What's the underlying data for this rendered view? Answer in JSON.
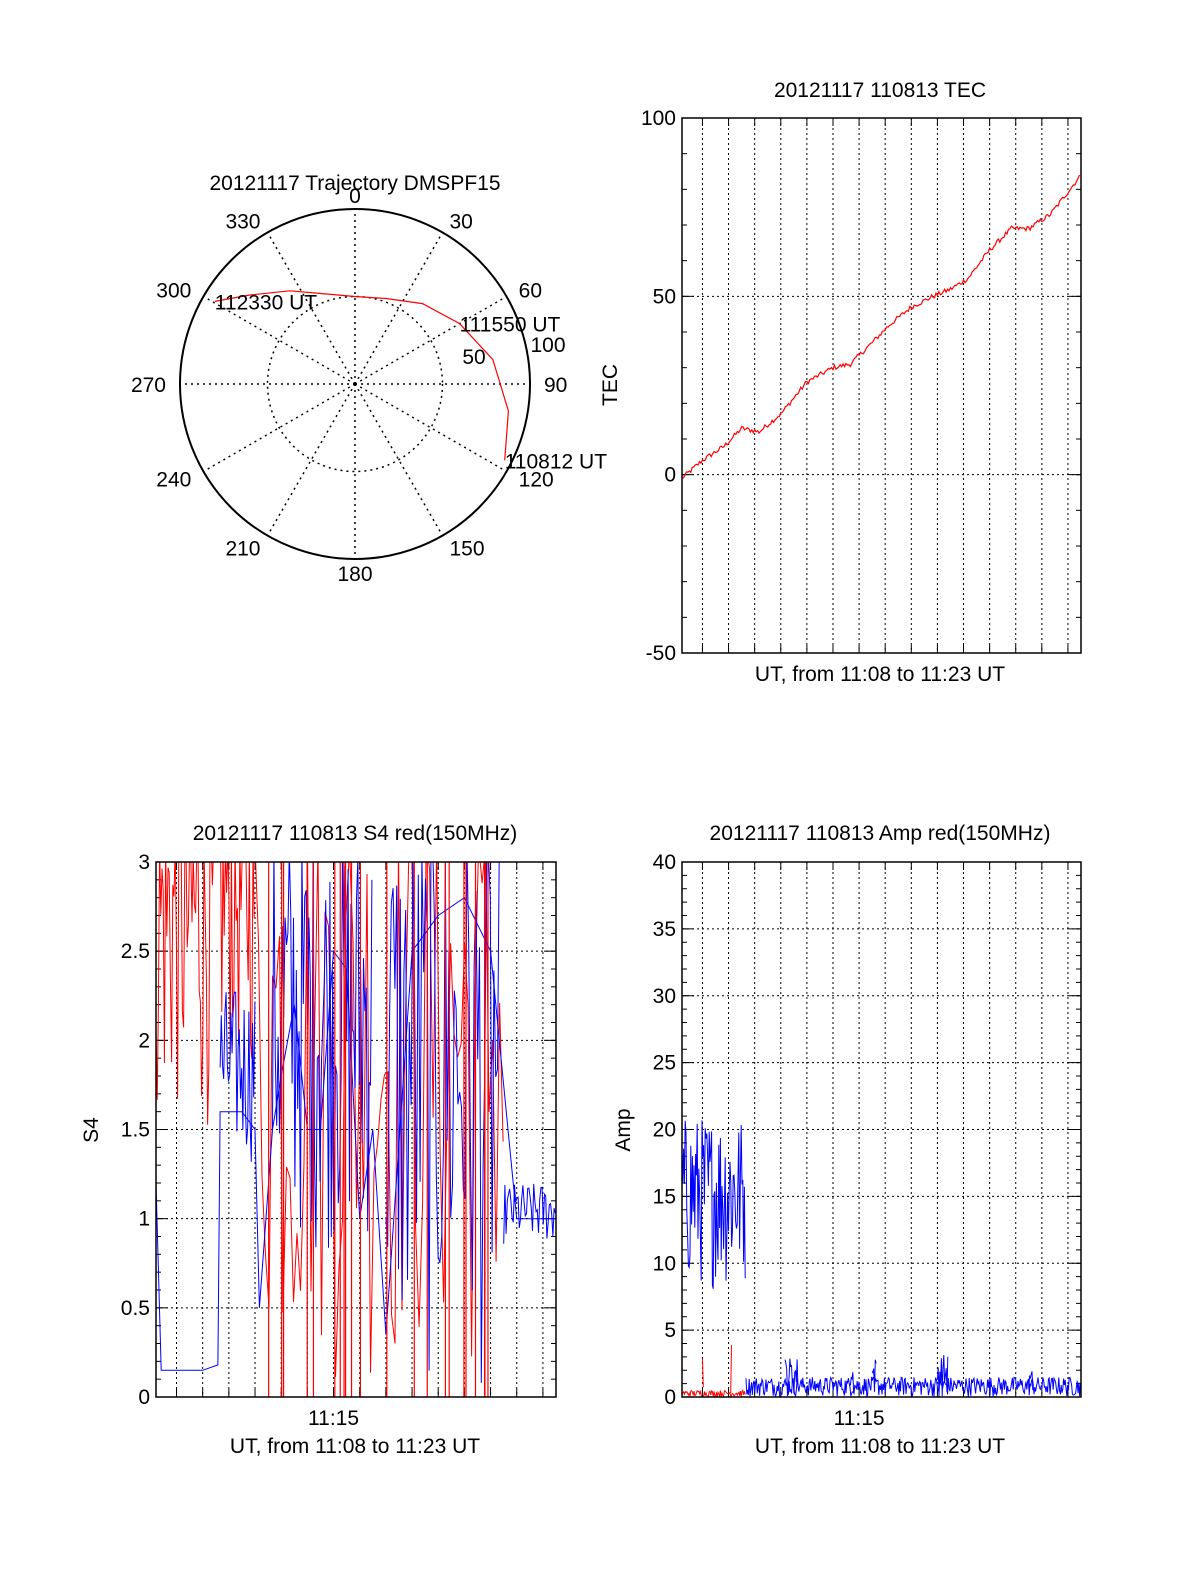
{
  "colors": {
    "red": "#ff0000",
    "blue": "#0000ff",
    "axis": "#000000",
    "grid": "#000000"
  },
  "chart_data": [
    {
      "id": "trajectory",
      "type": "polar",
      "title": "20121117 Trajectory DMSPF15",
      "azimuth_labels": [
        "0",
        "30",
        "60",
        "90",
        "120",
        "150",
        "180",
        "210",
        "240",
        "270",
        "300",
        "330"
      ],
      "radial_labels": [
        "50",
        "100"
      ],
      "radial_range": [
        0,
        100
      ],
      "grid": true,
      "series": [
        {
          "color": "red",
          "points": [
            {
              "az": 300.5,
              "r": 93
            },
            {
              "az": 310,
              "r": 79
            },
            {
              "az": 325,
              "r": 65
            },
            {
              "az": 340,
              "r": 55
            },
            {
              "az": 0,
              "r": 50
            },
            {
              "az": 20,
              "r": 52
            },
            {
              "az": 40,
              "r": 60
            },
            {
              "az": 60,
              "r": 69
            },
            {
              "az": 80,
              "r": 80
            },
            {
              "az": 100,
              "r": 89
            },
            {
              "az": 117,
              "r": 96
            }
          ]
        }
      ],
      "annotations": [
        {
          "text": "112330 UT",
          "az": 300.5,
          "r": 93
        },
        {
          "text": "111550 UT",
          "az": 60,
          "r": 69
        },
        {
          "text": "110812 UT",
          "az": 117,
          "r": 96
        }
      ]
    },
    {
      "id": "tec",
      "type": "line",
      "title": "20121117 110813 TEC",
      "xlabel": "UT, from 11:08 to 11:23 UT",
      "ylabel": "TEC",
      "ylim": [
        -50,
        100
      ],
      "yticks": [
        -50,
        0,
        50,
        100
      ],
      "xlim": [
        "11:08:13",
        "11:23:30"
      ],
      "grid": true,
      "series": [
        {
          "color": "red",
          "x": [
            "11:08:13",
            "11:09:00",
            "11:09:50",
            "11:10:30",
            "11:11:10",
            "11:12:00",
            "11:13:00",
            "11:14:00",
            "11:14:40",
            "11:15:30",
            "11:16:10",
            "11:17:00",
            "11:17:50",
            "11:18:30",
            "11:19:10",
            "11:20:00",
            "11:20:50",
            "11:21:30",
            "11:22:20",
            "11:23:30"
          ],
          "values": [
            -1,
            4,
            8,
            13,
            12,
            17,
            26,
            30,
            31,
            37,
            42,
            47,
            50,
            52,
            55,
            63,
            69,
            69,
            73,
            84
          ]
        }
      ]
    },
    {
      "id": "s4",
      "type": "line",
      "title": "20121117 110813 S4 red(150MHz)",
      "xlabel": "UT, from 11:08 to 11:23 UT",
      "ylabel": "S4",
      "ylim": [
        0,
        3
      ],
      "yticks": [
        "0",
        "0.5",
        "1",
        "1.5",
        "2",
        "2.5",
        "3"
      ],
      "xticks": [
        "11:15"
      ],
      "xlim": [
        "11:08:13",
        "11:23:30"
      ],
      "grid": true,
      "series": [
        {
          "color": "red",
          "segments": [
            {
              "x": [
                "11:08:13",
                "11:10:30"
              ],
              "low": 1.5,
              "high": 3
            },
            {
              "x": [
                "11:10:30",
                "11:12:00"
              ],
              "low": 1.8,
              "high": 3
            },
            {
              "x": [
                "11:12:00",
                "11:18:00"
              ],
              "low": 0,
              "high": 3
            },
            {
              "x": [
                "11:18:00",
                "11:21:30"
              ],
              "low": 0,
              "high": 3
            }
          ]
        },
        {
          "color": "blue",
          "x": [
            "11:08:13",
            "11:08:25",
            "11:09:00",
            "11:10:00",
            "11:10:35",
            "11:10:40",
            "11:11:30",
            "11:12:00",
            "11:12:10",
            "11:12:40",
            "11:13:00",
            "11:13:30",
            "11:14:00",
            "11:14:30",
            "11:15:00",
            "11:15:30",
            "11:16:00",
            "11:16:30",
            "11:17:00",
            "11:18:00",
            "11:19:00",
            "11:20:00",
            "11:21:00",
            "11:22:00",
            "11:23:30"
          ],
          "values": [
            1.2,
            0.15,
            0.15,
            0.15,
            0.18,
            1.6,
            1.6,
            1.5,
            0.5,
            1.5,
            1.8,
            2.2,
            1.5,
            1.5,
            2.5,
            2.4,
            1.0,
            1.5,
            0.35,
            2.5,
            2.7,
            2.8,
            2.5,
            1.0,
            1.0
          ]
        }
      ]
    },
    {
      "id": "amp",
      "type": "line",
      "title": "20121117 110813 Amp red(150MHz)",
      "xlabel": "UT, from 11:08 to 11:23 UT",
      "ylabel": "Amp",
      "ylim": [
        0,
        40
      ],
      "yticks": [
        "0",
        "5",
        "10",
        "15",
        "20",
        "25",
        "30",
        "35",
        "40"
      ],
      "xticks": [
        "11:15"
      ],
      "xlim": [
        "11:08:13",
        "11:23:30"
      ],
      "grid": true,
      "series": [
        {
          "color": "blue",
          "segments": [
            {
              "x": [
                "11:08:13",
                "11:10:40"
              ],
              "low": 8,
              "high": 21
            },
            {
              "x": [
                "11:10:40",
                "11:23:30"
              ],
              "low": 0,
              "high": 1.5
            }
          ],
          "bursts": [
            {
              "x": [
                "11:12:10",
                "11:12:40"
              ],
              "high": 3
            },
            {
              "x": [
                "11:14:40",
                "11:14:50"
              ],
              "high": 2.5
            },
            {
              "x": [
                "11:15:30",
                "11:15:40"
              ],
              "high": 3
            },
            {
              "x": [
                "11:18:00",
                "11:18:25"
              ],
              "high": 3.2
            },
            {
              "x": [
                "11:21:30",
                "11:21:40"
              ],
              "high": 2
            }
          ]
        },
        {
          "color": "red",
          "segments": [
            {
              "x": [
                "11:08:13",
                "11:10:40"
              ],
              "low": 0,
              "high": 0.5
            }
          ],
          "bursts": [
            {
              "x": [
                "11:09:00",
                "11:09:03"
              ],
              "high": 3.5
            },
            {
              "x": [
                "11:10:05",
                "11:10:08"
              ],
              "high": 4.8
            }
          ]
        }
      ]
    }
  ]
}
